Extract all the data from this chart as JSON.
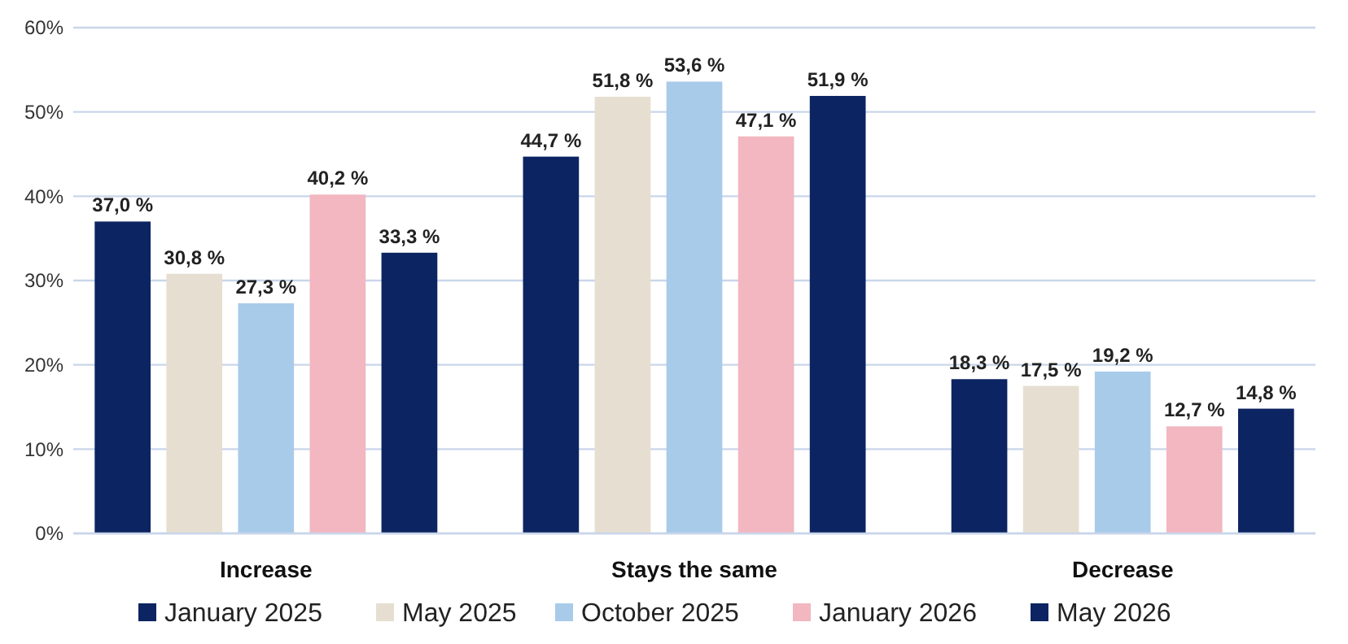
{
  "chart_data": {
    "type": "bar",
    "categories": [
      "Increase",
      "Stays the same",
      "Decrease"
    ],
    "series": [
      {
        "name": "January 2025",
        "color": "#0c2461",
        "values": [
          37.0,
          44.7,
          18.3
        ],
        "value_labels": [
          "37,0 %",
          "44,7 %",
          "18,3 %"
        ]
      },
      {
        "name": "May 2025",
        "color": "#e6dfd1",
        "values": [
          30.8,
          51.8,
          17.5
        ],
        "value_labels": [
          "30,8 %",
          "51,8 %",
          "17,5 %"
        ]
      },
      {
        "name": "October 2025",
        "color": "#a9cbea",
        "values": [
          27.3,
          53.6,
          19.2
        ],
        "value_labels": [
          "27,3 %",
          "53,6 %",
          "19,2 %"
        ]
      },
      {
        "name": "January 2026",
        "color": "#f2b7c0",
        "values": [
          40.2,
          47.1,
          12.7
        ],
        "value_labels": [
          "40,2 %",
          "47,1 %",
          "12,7 %"
        ]
      },
      {
        "name": "May 2026",
        "color": "#0c2461",
        "values": [
          33.3,
          51.9,
          14.8
        ],
        "value_labels": [
          "33,3 %",
          "51,9 %",
          "14,8 %"
        ]
      }
    ],
    "ylim": [
      0,
      60
    ],
    "yticks": [
      {
        "value": 0,
        "label": "0%"
      },
      {
        "value": 10,
        "label": "10%"
      },
      {
        "value": 20,
        "label": "20%"
      },
      {
        "value": 30,
        "label": "30%"
      },
      {
        "value": 40,
        "label": "40%"
      },
      {
        "value": 50,
        "label": "50%"
      },
      {
        "value": 60,
        "label": "60%"
      }
    ],
    "grid": "y",
    "legend": "bottom"
  }
}
